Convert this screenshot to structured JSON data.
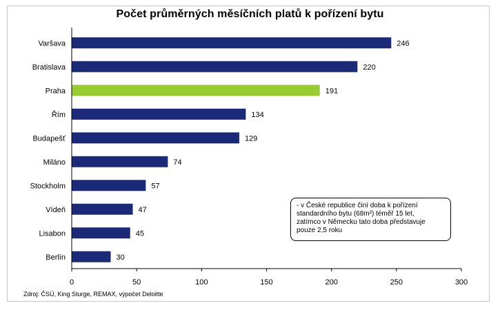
{
  "chart_data": {
    "type": "bar",
    "orientation": "horizontal",
    "title": "Počet průměrných měsíčních platů k pořízení  bytu",
    "categories": [
      "Varšava",
      "Bratislava",
      "Praha",
      "Řím",
      "Budapešť",
      "Miláno",
      "Stockholm",
      "Vídeň",
      "Lisabon",
      "Berlín"
    ],
    "values": [
      246,
      220,
      191,
      134,
      129,
      74,
      57,
      47,
      45,
      30
    ],
    "colors": [
      "#1b2a78",
      "#1b2a78",
      "#99cc33",
      "#1b2a78",
      "#1b2a78",
      "#1b2a78",
      "#1b2a78",
      "#1b2a78",
      "#1b2a78",
      "#1b2a78"
    ],
    "xlim": [
      0,
      300
    ],
    "xticks": [
      0,
      50,
      100,
      150,
      200,
      250,
      300
    ],
    "grid": false,
    "legend": "none"
  },
  "note_lines": [
    "- v České republice činí doba k pořízení",
    "standardního bytu (68m²) téměř 15 let,",
    "zatímco v Německu tato doba představuje",
    "pouze 2,5 roku"
  ],
  "source": "Zdroj: ČSÚ, King Sturge, REMAX, výpočet Deloitte"
}
